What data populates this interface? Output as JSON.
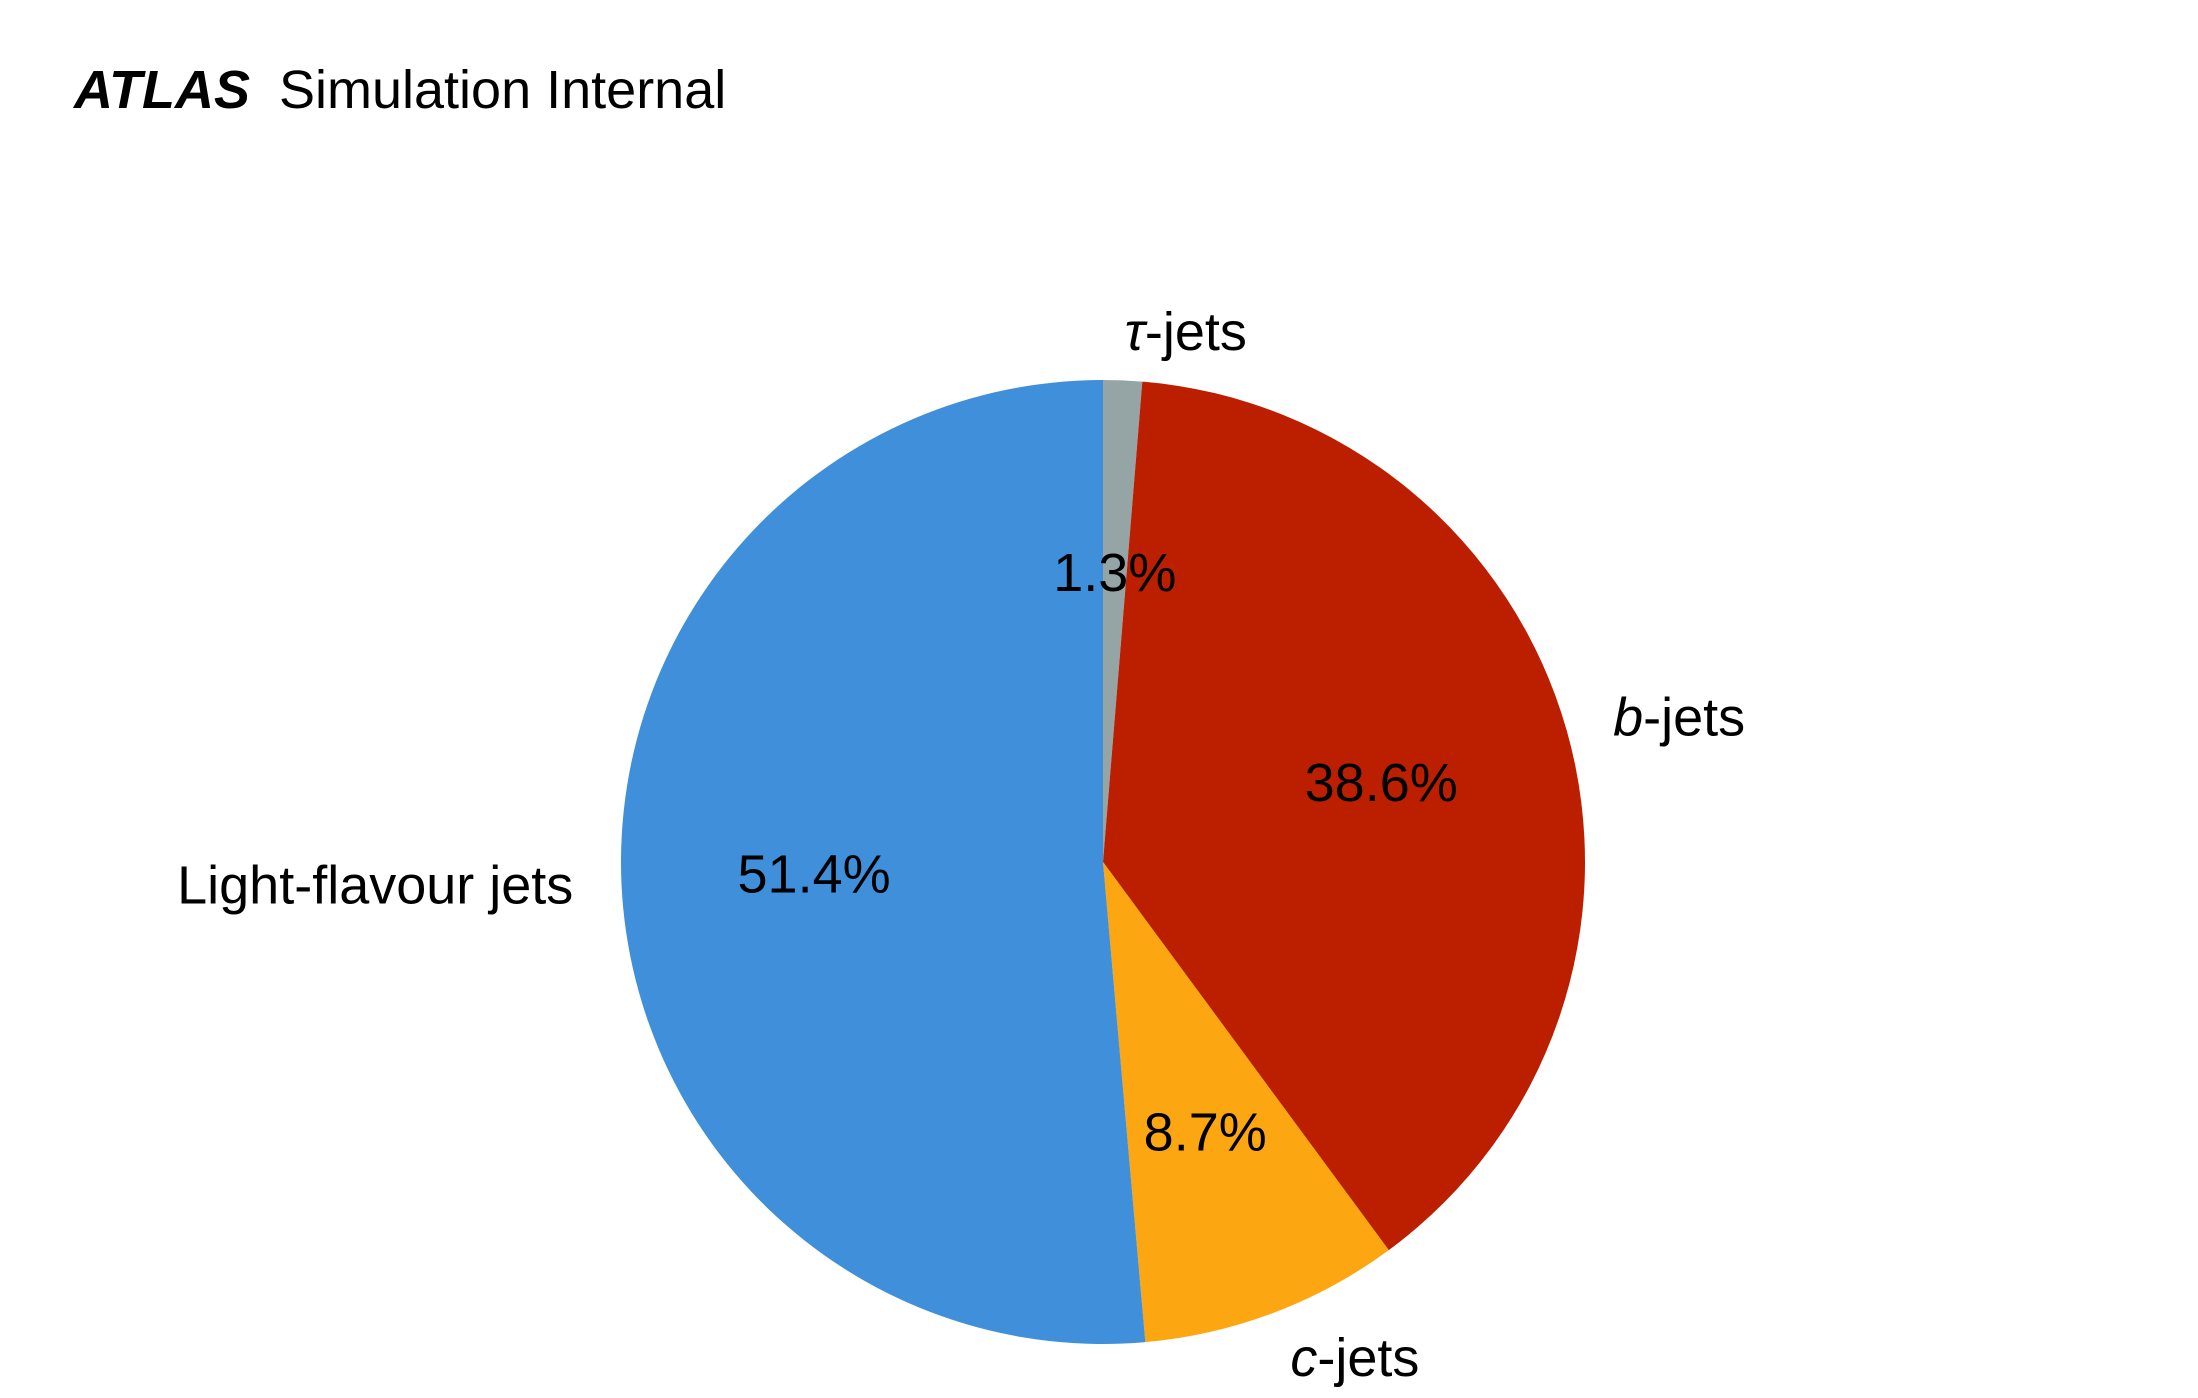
{
  "header": {
    "experiment": "ATLAS",
    "status": "Simulation Internal"
  },
  "chart_data": {
    "type": "pie",
    "start_angle_deg": 90,
    "direction": "clockwise",
    "slices": [
      {
        "prefix": "τ",
        "suffix": "-jets",
        "prefix_italic": true,
        "value": 1.3,
        "label_pct": "1.3%",
        "color": "#95a5a6"
      },
      {
        "prefix": "b",
        "suffix": "-jets",
        "prefix_italic": true,
        "value": 38.6,
        "label_pct": "38.6%",
        "color": "#bb1f00"
      },
      {
        "prefix": "c",
        "suffix": "-jets",
        "prefix_italic": true,
        "value": 8.7,
        "label_pct": "8.7%",
        "color": "#fca611"
      },
      {
        "prefix": "",
        "suffix": "Light-flavour jets",
        "prefix_italic": false,
        "value": 51.4,
        "label_pct": "51.4%",
        "color": "#3f8fda"
      }
    ]
  }
}
